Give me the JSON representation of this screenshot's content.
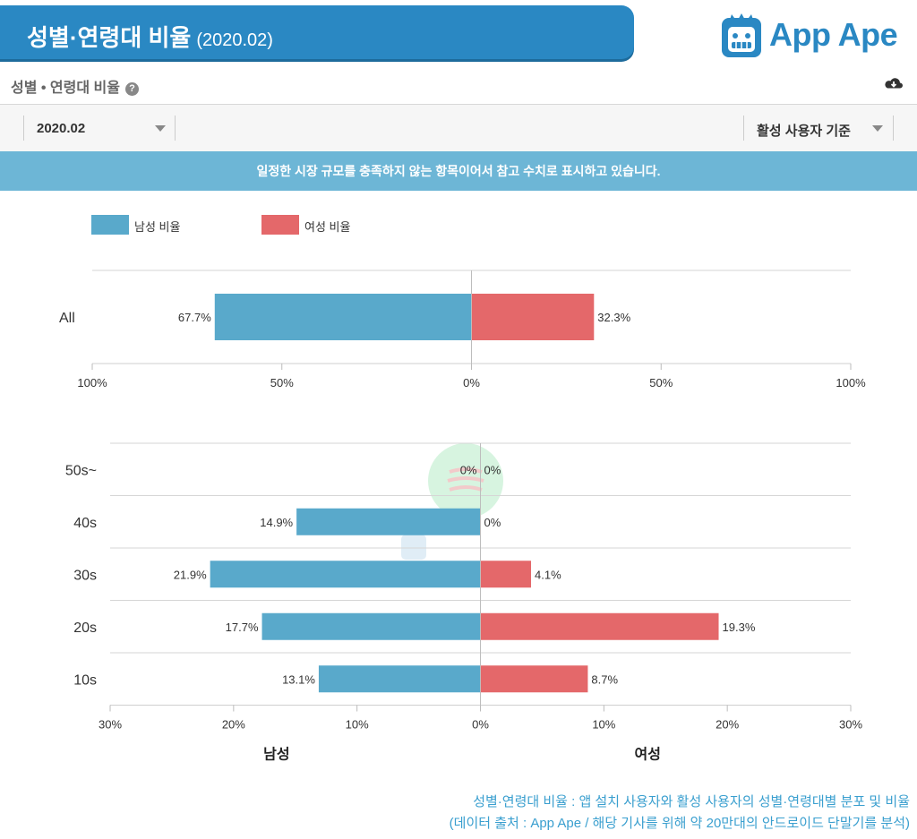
{
  "header": {
    "title": "성별·연령대 비율",
    "subtitle": "(2020.02)",
    "brand": "App Ape"
  },
  "section": {
    "title": "성별 • 연령대 비율",
    "help_glyph": "?"
  },
  "filters": {
    "date_value": "2020.02",
    "basis_value": "활성 사용자 기준"
  },
  "notice": "일정한 시장 규모를 충족하지 않는 항목이어서 참고 수치로 표시하고 있습니다.",
  "legend": {
    "male": "남성 비율",
    "female": "여성 비율"
  },
  "colors": {
    "male": "#59a9cb",
    "female": "#e4686a",
    "brand": "#2a88c3"
  },
  "chart_data": [
    {
      "type": "bar",
      "orientation": "horizontal-diverging",
      "categories": [
        "All"
      ],
      "series": [
        {
          "name": "남성 비율",
          "values": [
            67.7
          ],
          "labels": [
            "67.7%"
          ]
        },
        {
          "name": "여성 비율",
          "values": [
            32.3
          ],
          "labels": [
            "32.3%"
          ]
        }
      ],
      "xlim": [
        -100,
        100
      ],
      "ticks": [
        -100,
        -50,
        0,
        50,
        100
      ],
      "tick_labels": [
        "100%",
        "50%",
        "0%",
        "50%",
        "100%"
      ]
    },
    {
      "type": "bar",
      "orientation": "horizontal-diverging",
      "categories": [
        "50s~",
        "40s",
        "30s",
        "20s",
        "10s"
      ],
      "series": [
        {
          "name": "남성 비율",
          "values": [
            0,
            14.9,
            21.9,
            17.7,
            13.1
          ],
          "labels": [
            "0%",
            "14.9%",
            "21.9%",
            "17.7%",
            "13.1%"
          ]
        },
        {
          "name": "여성 비율",
          "values": [
            0,
            0,
            4.1,
            19.3,
            8.7
          ],
          "labels": [
            "0%",
            "0%",
            "4.1%",
            "19.3%",
            "8.7%"
          ]
        }
      ],
      "xlim": [
        -30,
        30
      ],
      "ticks": [
        -30,
        -20,
        -10,
        0,
        10,
        20,
        30
      ],
      "tick_labels": [
        "30%",
        "20%",
        "10%",
        "0%",
        "10%",
        "20%",
        "30%"
      ],
      "xlabel_left": "남성",
      "xlabel_right": "여성"
    }
  ],
  "footer": {
    "line1": "성별·연령대 비율 : 앱 설치 사용자와 활성 사용자의 성별·연령대별 분포 및 비율",
    "line2": "(데이터 출처 : App Ape / 해당 기사를 위해 약 20만대의 안드로이드 단말기를 분석)"
  }
}
